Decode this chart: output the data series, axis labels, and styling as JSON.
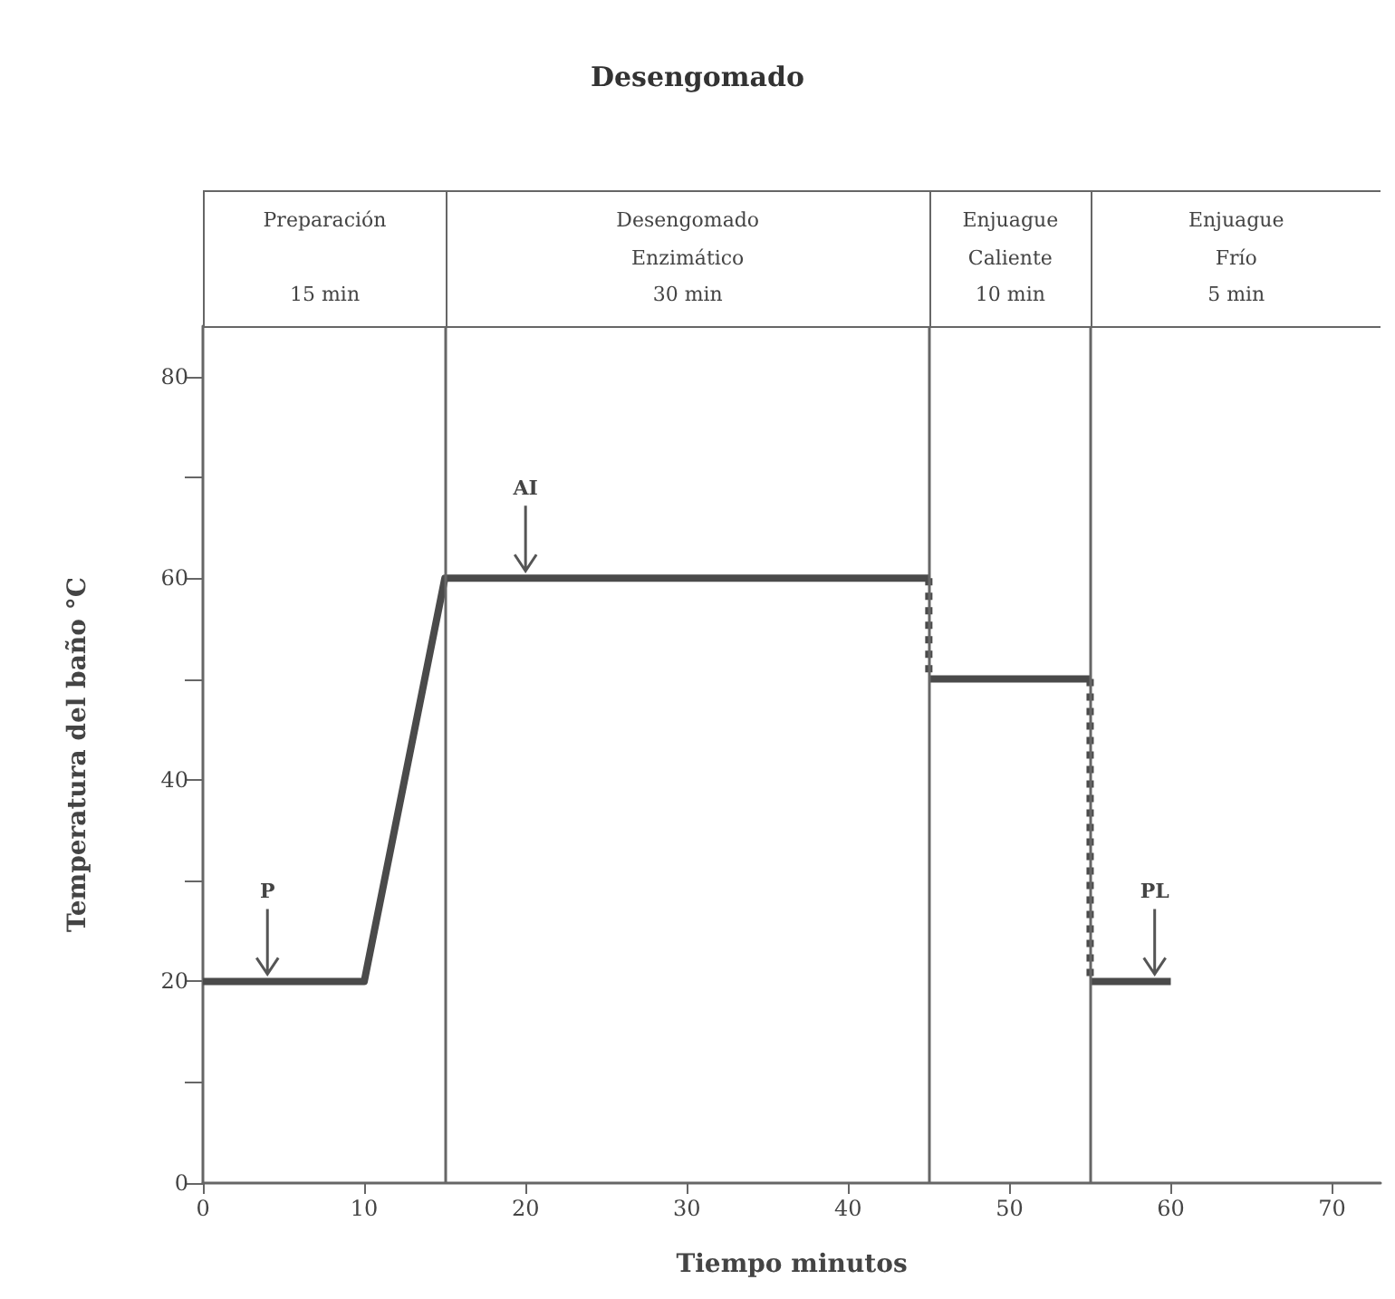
{
  "chart_data": {
    "type": "line",
    "title": "Desengomado",
    "xlabel": "Tiempo minutos",
    "ylabel": "Temperatura del baño °C",
    "xlim": [
      0,
      73
    ],
    "xticks": [
      0,
      10,
      20,
      30,
      40,
      50,
      60,
      70
    ],
    "ylim": [
      0,
      85
    ],
    "yticks": [
      0,
      {
        "value": 10,
        "label": null
      },
      20,
      {
        "value": 30,
        "label": null
      },
      40,
      {
        "value": 50,
        "label": null
      },
      60,
      {
        "value": 70,
        "label": null
      },
      80
    ],
    "grid": false,
    "marker": "none",
    "series": [
      {
        "x": [
          0,
          10,
          15,
          45
        ],
        "values": [
          20,
          20,
          60,
          60
        ],
        "color": "#4a4a4a",
        "line_style": "solid"
      },
      {
        "x": [
          45,
          45
        ],
        "values": [
          60,
          50
        ],
        "color": "#4a4a4a",
        "line_style": "dotted"
      },
      {
        "x": [
          45,
          55
        ],
        "values": [
          50,
          50
        ],
        "color": "#4a4a4a",
        "line_style": "solid"
      },
      {
        "x": [
          55,
          55
        ],
        "values": [
          50,
          20
        ],
        "color": "#4a4a4a",
        "line_style": "dotted"
      },
      {
        "x": [
          55,
          60
        ],
        "values": [
          20,
          20
        ],
        "color": "#4a4a4a",
        "line_style": "solid"
      }
    ],
    "ref_lines": [
      {
        "axis": "x",
        "value": 15,
        "color": "#666666"
      },
      {
        "axis": "x",
        "value": 45,
        "color": "#666666"
      },
      {
        "axis": "x",
        "value": 55,
        "color": "#666666"
      }
    ],
    "annotations": [
      "Preparación\n\n15 min",
      "Desengomado\nEnzimático\n30 min",
      "Enjuague\nCaliente\n10 min",
      "Enjuague\nFrío\n5 min",
      {
        "text": "P",
        "x": 4,
        "y": 20
      },
      {
        "text": "AI",
        "x": 20,
        "y": 60
      },
      {
        "text": "PL",
        "x": 59,
        "y": 20
      }
    ]
  }
}
